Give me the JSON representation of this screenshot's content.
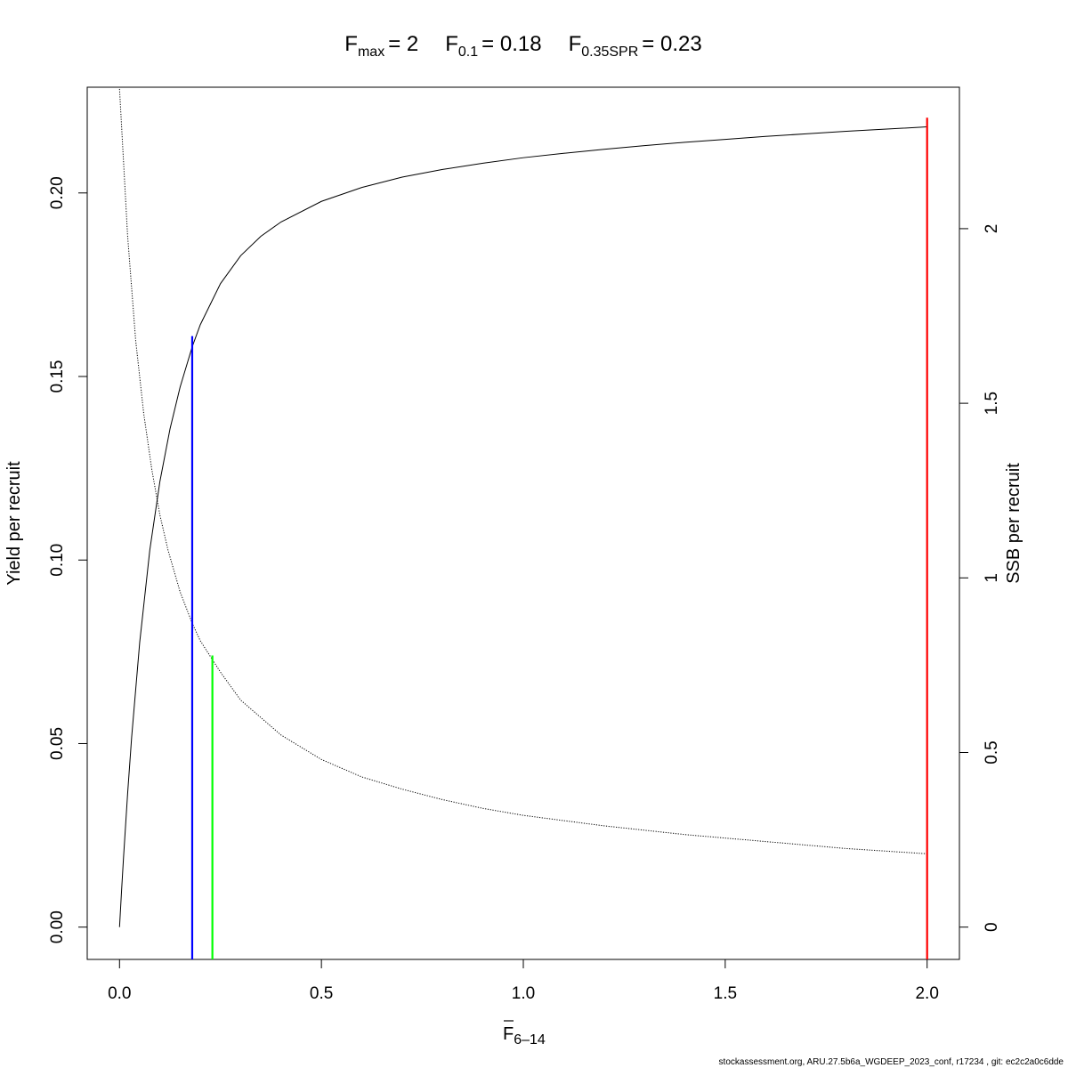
{
  "chart_data": {
    "type": "line",
    "title": {
      "fmax": {
        "main": "F",
        "sub": "max",
        "value": "= 2"
      },
      "f01": {
        "main": "F",
        "sub": "0.1",
        "value": "= 0.18"
      },
      "f035": {
        "main": "F",
        "sub": "0.35SPR",
        "value": "= 0.23"
      }
    },
    "xlabel": {
      "main": "F",
      "sub": "6–14"
    },
    "ylabel": "Yield per recruit",
    "y2label": "SSB per recruit",
    "xlim": [
      -0.08,
      2.08
    ],
    "ylim": [
      -0.0088,
      0.2288
    ],
    "y2lim": [
      -0.0925,
      2.405
    ],
    "x_ticks": [
      0,
      0.5,
      1,
      1.5,
      2
    ],
    "x_tick_labels": [
      "0.0",
      "0.5",
      "1.0",
      "1.5",
      "2.0"
    ],
    "y_ticks": [
      0,
      0.05,
      0.1,
      0.15,
      0.2
    ],
    "y_tick_labels": [
      "0.00",
      "0.05",
      "0.10",
      "0.15",
      "0.20"
    ],
    "y2_ticks": [
      0,
      0.5,
      1,
      1.5,
      2
    ],
    "y2_tick_labels": [
      "0",
      "0.5",
      "1",
      "1.5",
      "2"
    ],
    "series": [
      {
        "line_style": "solid",
        "color": "#000000",
        "axis": "left",
        "x": [
          0,
          0.005,
          0.01,
          0.02,
          0.03,
          0.05,
          0.075,
          0.1,
          0.125,
          0.15,
          0.18,
          0.2,
          0.25,
          0.3,
          0.35,
          0.4,
          0.5,
          0.6,
          0.7,
          0.8,
          0.9,
          1.0,
          1.1,
          1.2,
          1.3,
          1.4,
          1.5,
          1.6,
          1.7,
          1.8,
          1.9,
          2.0
        ],
        "y": [
          0,
          0.0098,
          0.0191,
          0.0363,
          0.0517,
          0.0776,
          0.1027,
          0.1214,
          0.1357,
          0.1471,
          0.1581,
          0.1641,
          0.1753,
          0.1829,
          0.1882,
          0.1921,
          0.1977,
          0.2015,
          0.2043,
          0.2064,
          0.2081,
          0.2096,
          0.2108,
          0.2119,
          0.2129,
          0.2138,
          0.2146,
          0.2154,
          0.2161,
          0.2168,
          0.2174,
          0.218
        ]
      },
      {
        "line_style": "dotted",
        "color": "#000000",
        "axis": "right",
        "x": [
          0,
          0.02,
          0.04,
          0.06,
          0.08,
          0.1,
          0.12,
          0.15,
          0.18,
          0.2,
          0.25,
          0.3,
          0.4,
          0.5,
          0.6,
          0.7,
          0.8,
          0.9,
          1.0,
          1.2,
          1.4,
          1.6,
          1.8,
          2.0
        ],
        "y": [
          2.4,
          1.98,
          1.68,
          1.47,
          1.31,
          1.18,
          1.08,
          0.96,
          0.87,
          0.82,
          0.73,
          0.65,
          0.55,
          0.48,
          0.43,
          0.395,
          0.365,
          0.34,
          0.32,
          0.29,
          0.265,
          0.245,
          0.225,
          0.21
        ]
      }
    ],
    "reference_lines": [
      {
        "x": 0.18,
        "y_top": 0.161,
        "color": "#0000ff"
      },
      {
        "x": 0.23,
        "y_top": 0.074,
        "color": "#00ff00"
      },
      {
        "x": 2.0,
        "y_top": 0.2205,
        "color": "#ff0000"
      }
    ],
    "grid": false,
    "legend": "none"
  },
  "footer": "stockassessment.org, ARU.27.5b6a_WGDEEP_2023_conf, r17234 , git: ec2c2a0c6dde"
}
